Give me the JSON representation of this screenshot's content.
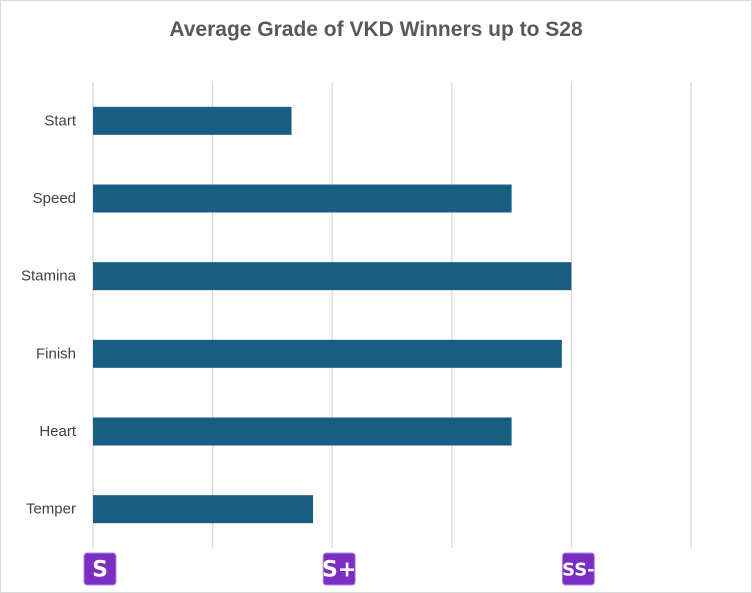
{
  "chart_data": {
    "type": "bar",
    "orientation": "horizontal",
    "title": "Average Grade of VKD Winners up to S28",
    "categories": [
      "Start",
      "Speed",
      "Stamina",
      "Finish",
      "Heart",
      "Temper"
    ],
    "values": [
      0.83,
      1.75,
      2.0,
      1.96,
      1.75,
      0.92
    ],
    "xlim": [
      0,
      2.5
    ],
    "x_tick_step": 0.5,
    "x_tick_badges": [
      {
        "value": 0,
        "label": "S"
      },
      {
        "value": 1,
        "label": "S+"
      },
      {
        "value": 2,
        "label": "SS-"
      }
    ],
    "grid": "vertical",
    "bar_color": "#175e82",
    "badge_color": "#7a2ec2",
    "gridline_color": "#d9d9d9"
  }
}
